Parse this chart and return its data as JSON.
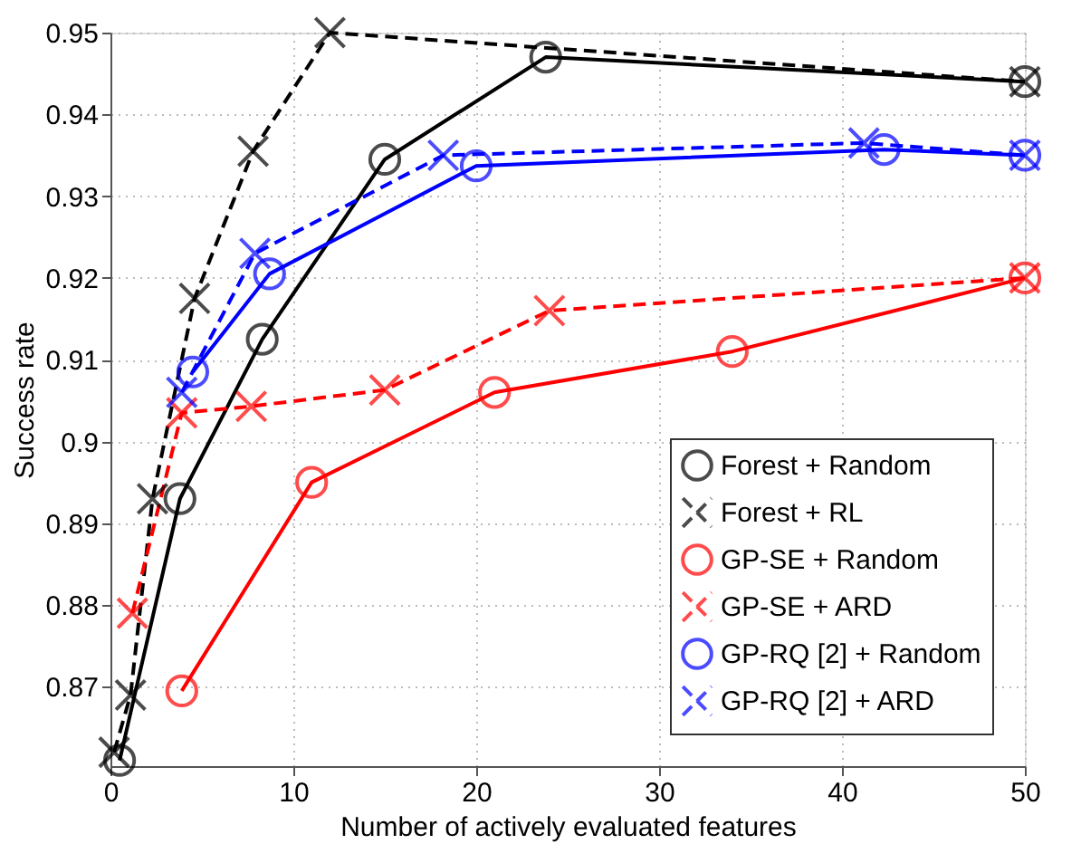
{
  "chart_data": {
    "type": "line",
    "xlabel": "Number of actively evaluated features",
    "ylabel": "Success rate",
    "xlim": [
      0,
      50
    ],
    "xticks": [
      0,
      10,
      20,
      30,
      40,
      50
    ],
    "ylim": [
      0.8603,
      0.95
    ],
    "yticks": [
      0.87,
      0.88,
      0.89,
      0.9,
      0.91,
      0.92,
      0.93,
      0.94,
      0.95
    ],
    "grid": true,
    "legend": "bottom right",
    "series": [
      {
        "name": "Forest + Random",
        "color": "#000000",
        "marker": "circle",
        "line_style": "solid",
        "x": [
          0.5,
          3.8,
          8.3,
          15,
          23.8,
          50
        ],
        "values": [
          0.861,
          0.893,
          0.9125,
          0.9345,
          0.947,
          0.944
        ]
      },
      {
        "name": "Forest + RL",
        "color": "#000000",
        "marker": "cross",
        "line_style": "dashed",
        "x": [
          0.2,
          1.1,
          2.3,
          4.6,
          7.8,
          12,
          50
        ],
        "values": [
          0.862,
          0.869,
          0.893,
          0.9175,
          0.9355,
          0.95,
          0.944
        ]
      },
      {
        "name": "GP-SE + Random",
        "color": "#ff0000",
        "marker": "circle",
        "line_style": "solid",
        "x": [
          3.9,
          11,
          21,
          34,
          50
        ],
        "values": [
          0.8695,
          0.895,
          0.906,
          0.911,
          0.92
        ]
      },
      {
        "name": "GP-SE + ARD",
        "color": "#ff0000",
        "marker": "cross",
        "line_style": "dashed",
        "x": [
          1.2,
          3.9,
          7.7,
          15,
          24,
          50
        ],
        "values": [
          0.879,
          0.9035,
          0.9043,
          0.9063,
          0.916,
          0.92
        ]
      },
      {
        "name": "GP-RQ [2] + Random",
        "color": "#0000ff",
        "marker": "circle",
        "line_style": "solid",
        "x": [
          4.5,
          8.7,
          20,
          42.3,
          50
        ],
        "values": [
          0.9085,
          0.9205,
          0.9337,
          0.9357,
          0.935
        ]
      },
      {
        "name": "GP-RQ [2] + ARD",
        "color": "#0000ff",
        "marker": "cross",
        "line_style": "dashed",
        "x": [
          3.9,
          7.9,
          18.2,
          41.2,
          50
        ],
        "values": [
          0.906,
          0.923,
          0.935,
          0.9365,
          0.935
        ]
      }
    ]
  }
}
